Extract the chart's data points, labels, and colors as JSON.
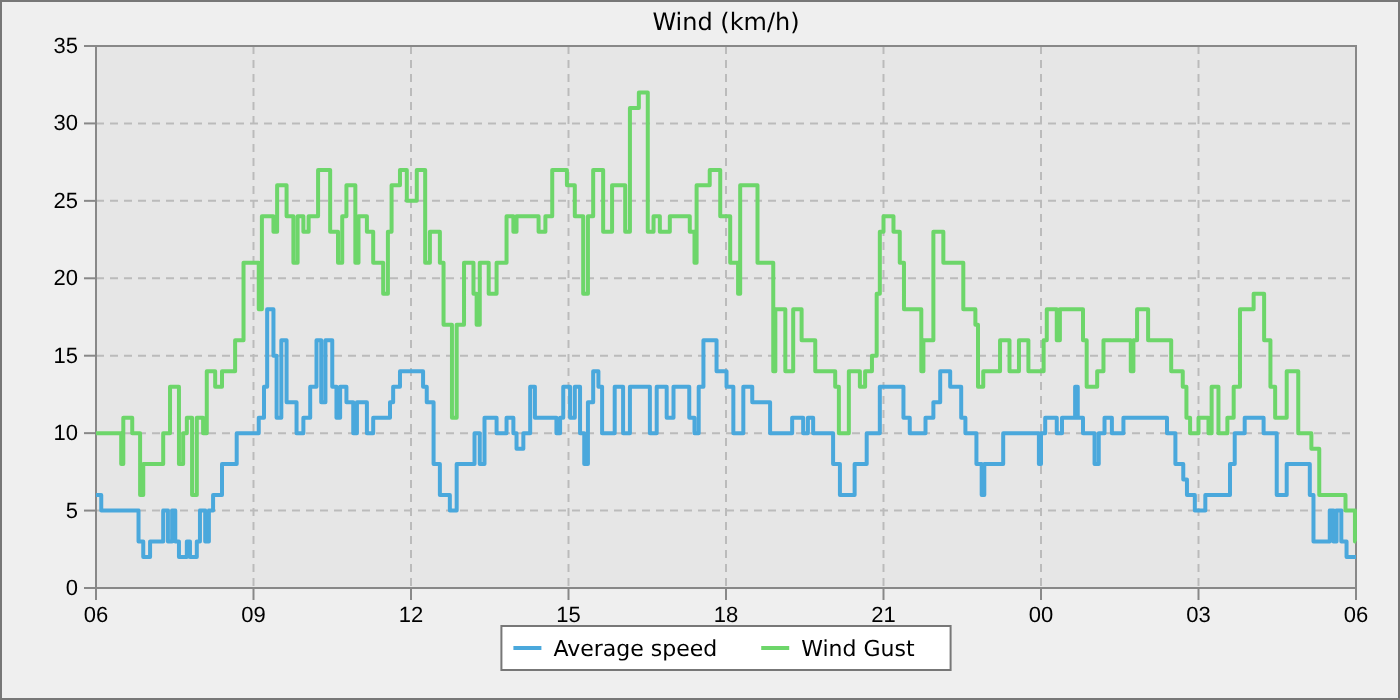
{
  "chart_data": {
    "type": "step",
    "title": "Wind (km/h)",
    "xlim": [
      6,
      30
    ],
    "xticks": [
      {
        "value": 6,
        "label": "06"
      },
      {
        "value": 9,
        "label": "09"
      },
      {
        "value": 12,
        "label": "12"
      },
      {
        "value": 15,
        "label": "15"
      },
      {
        "value": 18,
        "label": "18"
      },
      {
        "value": 21,
        "label": "21"
      },
      {
        "value": 24,
        "label": "00"
      },
      {
        "value": 27,
        "label": "03"
      },
      {
        "value": 30,
        "label": "06"
      }
    ],
    "ylim": [
      0,
      35
    ],
    "yticks": [
      0,
      5,
      10,
      15,
      20,
      25,
      30,
      35
    ],
    "grid": true,
    "legend": "bottom",
    "marker": "none",
    "line_style": "solid",
    "series": [
      {
        "name": "Average speed",
        "color": "#4aa8dc",
        "x": [
          6,
          6.1,
          6.81,
          6.9,
          7.03,
          7.28,
          7.37,
          7.45,
          7.51,
          7.58,
          7.73,
          7.79,
          7.92,
          7.98,
          8.08,
          8.15,
          8.23,
          8.4,
          8.68,
          9.1,
          9.2,
          9.26,
          9.38,
          9.44,
          9.53,
          9.63,
          9.82,
          9.95,
          10.08,
          10.2,
          10.29,
          10.37,
          10.5,
          10.58,
          10.65,
          10.77,
          10.9,
          10.97,
          11.16,
          11.28,
          11.6,
          11.66,
          11.79,
          12.23,
          12.3,
          12.43,
          12.55,
          12.74,
          12.87,
          13.21,
          13.31,
          13.4,
          13.63,
          13.82,
          13.95,
          14.01,
          14.14,
          14.27,
          14.36,
          14.77,
          14.84,
          14.9,
          15.03,
          15.12,
          15.22,
          15.3,
          15.37,
          15.47,
          15.57,
          15.64,
          15.88,
          16.04,
          16.17,
          16.55,
          16.68,
          16.87,
          17.0,
          17.3,
          17.4,
          17.48,
          17.57,
          17.82,
          18.01,
          18.14,
          18.33,
          18.5,
          18.84,
          19.26,
          19.47,
          19.56,
          19.66,
          20.04,
          20.17,
          20.45,
          20.68,
          20.93,
          21.38,
          21.5,
          21.8,
          21.95,
          22.08,
          22.27,
          22.48,
          22.56,
          22.77,
          22.87,
          22.92,
          23.28,
          23.96,
          24.0,
          24.08,
          24.3,
          24.4,
          24.65,
          24.7,
          24.8,
          25.02,
          25.1,
          25.21,
          25.35,
          25.57,
          26.4,
          26.56,
          26.71,
          26.78,
          26.93,
          27.13,
          27.6,
          27.69,
          27.88,
          28.24,
          28.49,
          28.68,
          29.12,
          29.19,
          29.5,
          29.57,
          29.63,
          29.72,
          29.82,
          30
        ],
        "values": [
          6,
          5,
          3,
          2,
          3,
          5,
          3,
          5,
          3,
          2,
          3,
          2,
          3,
          5,
          3,
          5,
          6,
          8,
          10,
          11,
          13,
          18,
          15,
          11,
          16,
          12,
          10,
          11,
          13,
          16,
          12,
          16,
          13,
          11,
          13,
          12,
          10,
          12,
          10,
          11,
          12,
          13,
          14,
          13,
          12,
          8,
          6,
          5,
          8,
          10,
          8,
          11,
          10,
          11,
          10,
          9,
          10,
          13,
          11,
          10,
          11,
          13,
          11,
          13,
          10,
          8,
          12,
          14,
          13,
          10,
          13,
          10,
          13,
          10,
          13,
          11,
          13,
          11,
          10,
          13,
          16,
          14,
          13,
          10,
          13,
          12,
          10,
          11,
          10,
          11,
          10,
          8,
          6,
          8,
          10,
          13,
          11,
          10,
          11,
          12,
          14,
          13,
          11,
          10,
          8,
          6,
          8,
          10,
          8,
          10,
          11,
          10,
          11,
          13,
          11,
          10,
          8,
          10,
          11,
          10,
          11,
          10,
          8,
          7,
          6,
          5,
          6,
          8,
          10,
          11,
          10,
          6,
          8,
          6,
          3,
          5,
          3,
          5,
          3,
          2,
          2
        ]
      },
      {
        "name": "Wind Gust",
        "color": "#6dd66a",
        "x": [
          6,
          6.48,
          6.52,
          6.69,
          6.84,
          6.9,
          7.28,
          7.41,
          7.58,
          7.66,
          7.73,
          7.83,
          7.92,
          8.04,
          8.11,
          8.27,
          8.4,
          8.65,
          8.81,
          9.1,
          9.16,
          9.38,
          9.45,
          9.63,
          9.76,
          9.84,
          9.95,
          10.05,
          10.23,
          10.46,
          10.61,
          10.69,
          10.77,
          10.94,
          11.0,
          11.16,
          11.28,
          11.47,
          11.56,
          11.63,
          11.79,
          11.92,
          12.11,
          12.27,
          12.36,
          12.55,
          12.62,
          12.78,
          12.87,
          13.01,
          13.19,
          13.25,
          13.31,
          13.48,
          13.63,
          13.82,
          13.95,
          14.01,
          14.43,
          14.56,
          14.69,
          14.97,
          15.12,
          15.28,
          15.37,
          15.47,
          15.66,
          15.83,
          16.08,
          16.17,
          16.34,
          16.51,
          16.62,
          16.74,
          16.93,
          17.31,
          17.4,
          17.44,
          17.69,
          17.89,
          18.08,
          18.23,
          18.27,
          18.6,
          18.9,
          18.94,
          19.13,
          19.28,
          19.44,
          19.7,
          20.08,
          20.15,
          20.34,
          20.55,
          20.65,
          20.78,
          20.87,
          20.93,
          21.0,
          21.19,
          21.31,
          21.39,
          21.72,
          21.76,
          21.95,
          22.14,
          22.52,
          22.75,
          22.8,
          22.9,
          23.22,
          23.4,
          23.58,
          23.76,
          24.05,
          24.11,
          24.3,
          24.36,
          24.8,
          24.87,
          25.07,
          25.19,
          25.71,
          25.76,
          25.83,
          26.04,
          26.48,
          26.7,
          26.77,
          26.84,
          27.0,
          27.19,
          27.25,
          27.38,
          27.55,
          27.67,
          27.79,
          28.05,
          28.25,
          28.37,
          28.46,
          28.68,
          28.9,
          29.15,
          29.3,
          29.8,
          29.98,
          30
        ],
        "values": [
          10,
          8,
          11,
          10,
          6,
          8,
          10,
          13,
          8,
          10,
          11,
          6,
          11,
          10,
          14,
          13,
          14,
          16,
          21,
          18,
          24,
          23,
          26,
          24,
          21,
          24,
          23,
          24,
          27,
          23,
          21,
          24,
          26,
          21,
          24,
          23,
          21,
          19,
          23,
          26,
          27,
          25,
          27,
          21,
          23,
          21,
          17,
          11,
          17,
          21,
          19,
          17,
          21,
          19,
          21,
          24,
          23,
          24,
          23,
          24,
          27,
          26,
          24,
          19,
          24,
          27,
          23,
          26,
          23,
          31,
          32,
          23,
          24,
          23,
          24,
          23,
          21,
          26,
          27,
          24,
          21,
          19,
          26,
          21,
          14,
          18,
          14,
          18,
          16,
          14,
          13,
          10,
          14,
          13,
          14,
          15,
          19,
          23,
          24,
          23,
          21,
          18,
          14,
          16,
          23,
          21,
          18,
          17,
          13,
          14,
          16,
          14,
          16,
          14,
          16,
          18,
          16,
          18,
          16,
          13,
          14,
          16,
          14,
          16,
          18,
          16,
          14,
          13,
          11,
          10,
          11,
          10,
          13,
          10,
          11,
          13,
          18,
          19,
          16,
          13,
          11,
          14,
          10,
          9,
          6,
          5,
          3,
          3
        ]
      }
    ]
  }
}
